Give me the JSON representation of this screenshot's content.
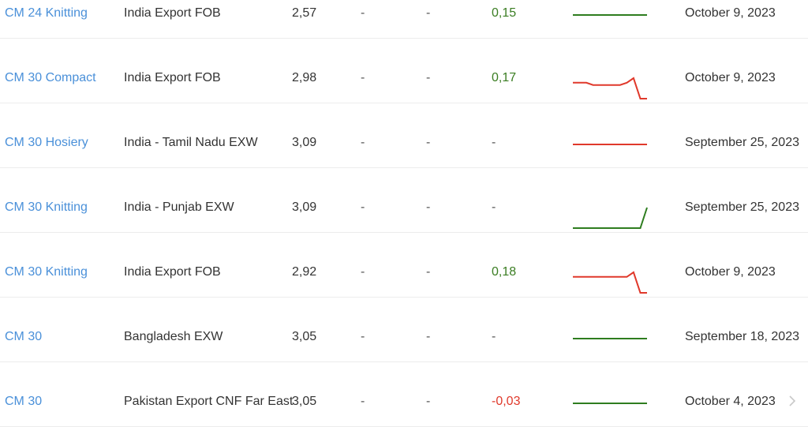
{
  "colors": {
    "positive": "#3a7d22",
    "negative": "#e0392b",
    "neutral": "#555555",
    "link": "#4a90d9"
  },
  "rows": [
    {
      "name": "CM 24 Knitting",
      "origin": "India Export FOB",
      "price": "2,57",
      "d1": "-",
      "d2": "-",
      "change": "0,15",
      "change_color": "#3a7d22",
      "date": "October 9, 2023",
      "trend_color": "#2e7d1f",
      "trend": [
        1,
        1,
        1,
        1,
        1,
        1,
        1,
        1,
        1,
        1,
        1,
        1
      ]
    },
    {
      "name": "CM 30 Compact",
      "origin": "India Export FOB",
      "price": "2,98",
      "d1": "-",
      "d2": "-",
      "change": "0,17",
      "change_color": "#3a7d22",
      "date": "October 9, 2023",
      "trend_color": "#e0392b",
      "trend": [
        3.05,
        3.05,
        3.05,
        3.04,
        3.04,
        3.04,
        3.04,
        3.04,
        3.05,
        3.07,
        2.98,
        2.98
      ]
    },
    {
      "name": "CM 30 Hosiery",
      "origin": "India - Tamil Nadu EXW",
      "price": "3,09",
      "d1": "-",
      "d2": "-",
      "change": "-",
      "change_color": "#555555",
      "date": "September 25, 2023",
      "trend_color": "#e0392b",
      "trend": [
        1,
        1,
        1,
        1,
        1,
        1,
        1,
        1,
        1,
        1,
        1,
        1
      ]
    },
    {
      "name": "CM 30 Knitting",
      "origin": "India - Punjab EXW",
      "price": "3,09",
      "d1": "-",
      "d2": "-",
      "change": "-",
      "change_color": "#555555",
      "date": "September 25, 2023",
      "trend_color": "#2e7d1f",
      "trend": [
        1,
        1,
        1,
        1,
        1,
        1,
        1,
        1,
        1,
        1,
        1,
        1.01
      ]
    },
    {
      "name": "CM 30 Knitting",
      "origin": "India Export FOB",
      "price": "2,92",
      "d1": "-",
      "d2": "-",
      "change": "0,18",
      "change_color": "#3a7d22",
      "date": "October 9, 2023",
      "trend_color": "#e0392b",
      "trend": [
        2.99,
        2.99,
        2.99,
        2.99,
        2.99,
        2.99,
        2.99,
        2.99,
        2.99,
        3.01,
        2.92,
        2.92
      ]
    },
    {
      "name": "CM 30",
      "origin": "Bangladesh EXW",
      "price": "3,05",
      "d1": "-",
      "d2": "-",
      "change": "-",
      "change_color": "#555555",
      "date": "September 18, 2023",
      "trend_color": "#2e7d1f",
      "trend": [
        1,
        1,
        1,
        1,
        1,
        1,
        1,
        1,
        1,
        1,
        1,
        1
      ]
    },
    {
      "name": "CM 30",
      "origin": "Pakistan Export CNF Far East",
      "price": "3,05",
      "d1": "-",
      "d2": "-",
      "change": "-0,03",
      "change_color": "#e0392b",
      "date": "October 4, 2023",
      "trend_color": "#2e7d1f",
      "trend": [
        1,
        1,
        1,
        1,
        1,
        1,
        1,
        1,
        1,
        1,
        1,
        1
      ]
    }
  ],
  "icons": {
    "next": "chevron-right-icon"
  }
}
